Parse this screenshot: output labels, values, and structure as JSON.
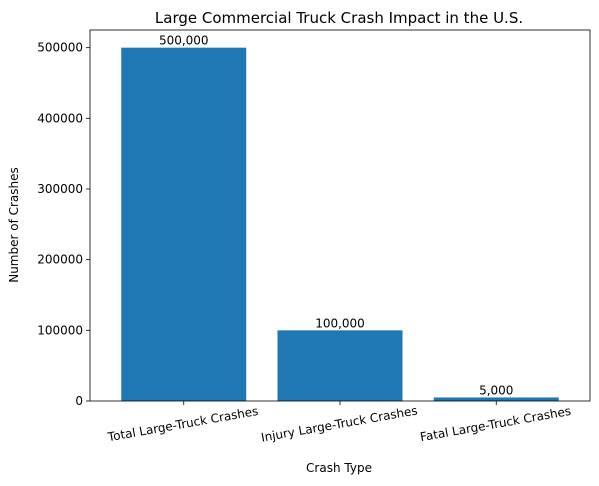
{
  "chart_data": {
    "type": "bar",
    "title": "Large Commercial Truck Crash Impact in the U.S.",
    "xlabel": "Crash Type",
    "ylabel": "Number of Crashes",
    "categories": [
      "Total Large-Truck Crashes",
      "Injury Large-Truck Crashes",
      "Fatal Large-Truck Crashes"
    ],
    "values": [
      500000,
      100000,
      5000
    ],
    "data_labels": [
      "500,000",
      "100,000",
      "5,000"
    ],
    "y_ticks": [
      0,
      100000,
      200000,
      300000,
      400000,
      500000
    ],
    "ylim": [
      0,
      525000
    ],
    "grid": false,
    "legend": "none",
    "colors": {
      "bar": "#1f77b4",
      "axis": "#000000"
    }
  }
}
